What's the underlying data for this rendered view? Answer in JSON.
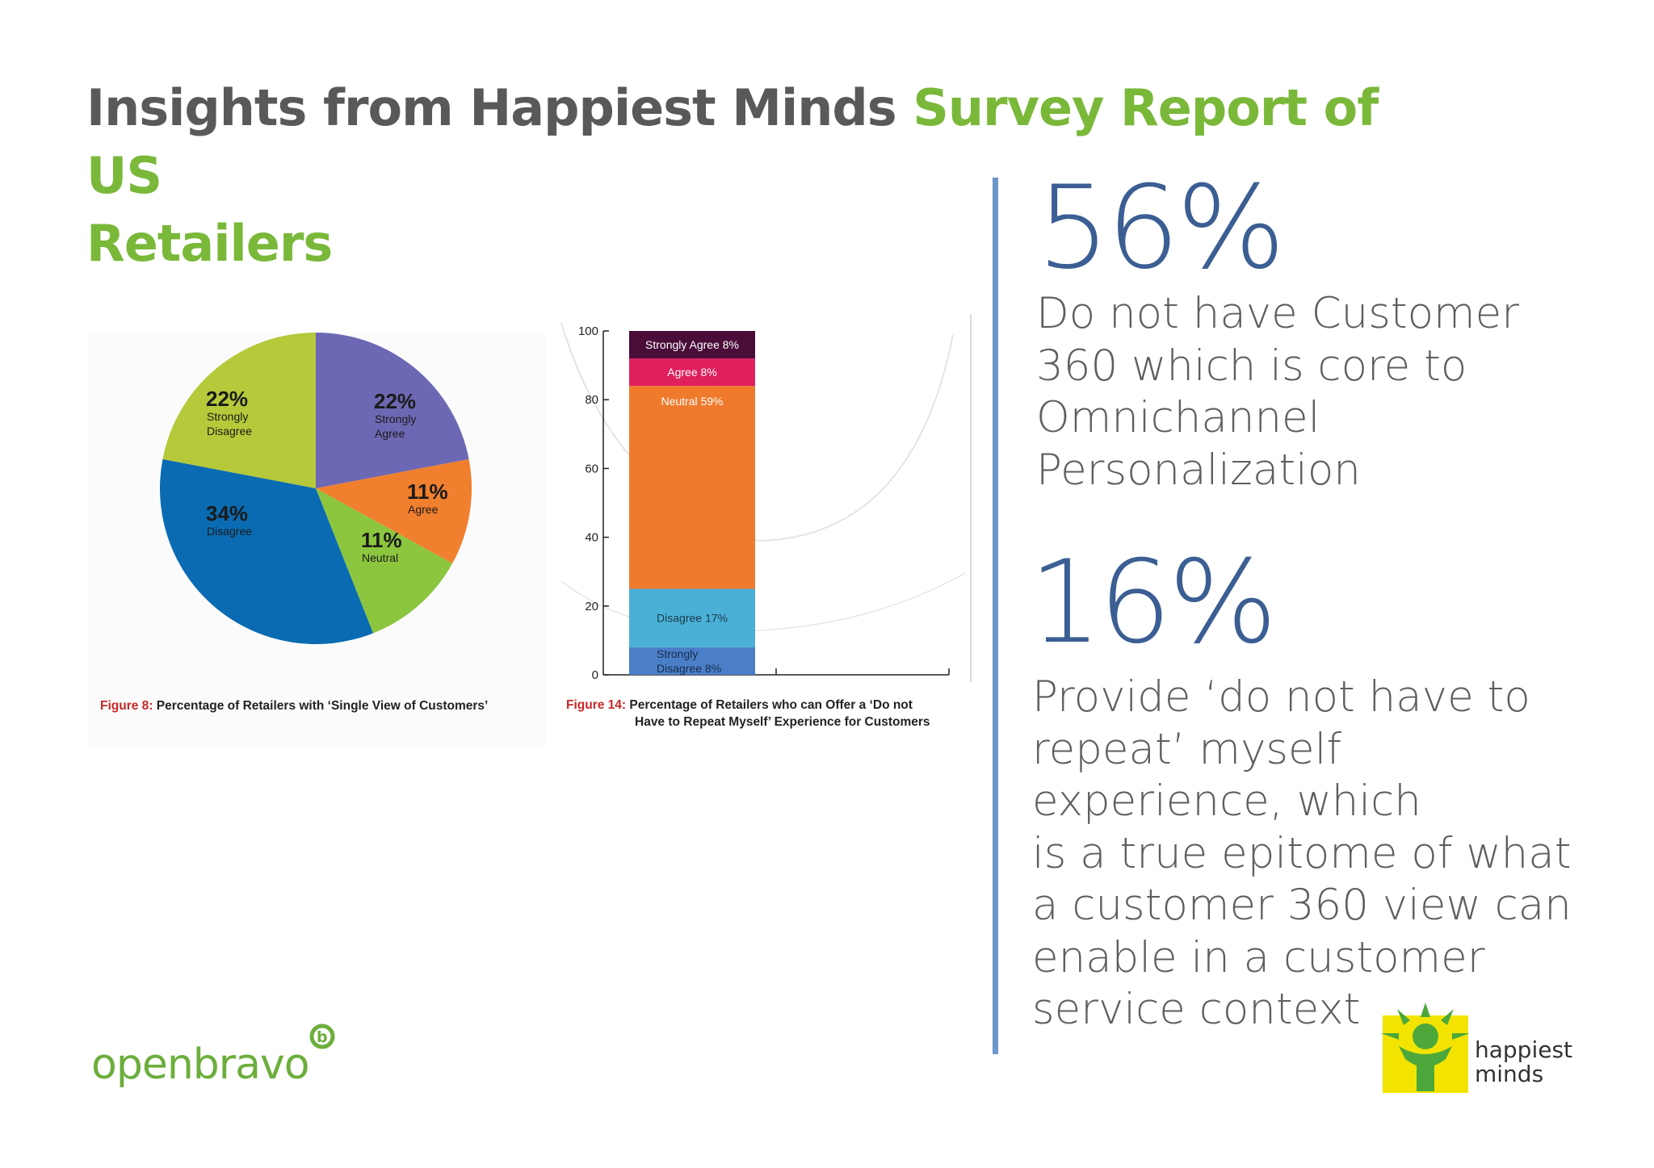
{
  "title": {
    "part1": "Insights from Happiest Minds ",
    "part2": "Survey Report of US",
    "part3": "Retailers"
  },
  "stats": [
    {
      "value": "56%",
      "lines": [
        "Do not have Customer",
        "360 which is core to",
        "Omnichannel",
        "Personalization"
      ]
    },
    {
      "value": "16%",
      "lines": [
        "Provide ‘do not have to",
        "repeat’ myself",
        "experience, which",
        "is a true epitome of what",
        "a customer 360 view can",
        "enable in a customer",
        "service context"
      ]
    }
  ],
  "logos": {
    "openbravo": "openbravo",
    "happiest_minds_line1": "happiest",
    "happiest_minds_line2": "minds"
  },
  "colors": {
    "title_grey": "#595959",
    "title_green": "#7ab83a",
    "stat_blue": "#3b5e93",
    "divider": "#6b97c9"
  },
  "chart_data": [
    {
      "type": "pie",
      "caption_prefix": "Figure 8:",
      "caption": "Percentage of Retailers with ‘Single View of Customers’",
      "slices": [
        {
          "label": "Strongly Agree",
          "value": 22,
          "display": "22%",
          "color": "#6c68b3"
        },
        {
          "label": "Agree",
          "value": 11,
          "display": "11%",
          "color": "#f07f2e"
        },
        {
          "label": "Neutral",
          "value": 11,
          "display": "11%",
          "color": "#8cc63f"
        },
        {
          "label": "Disagree",
          "value": 34,
          "display": "34%",
          "color": "#0a6bb2"
        },
        {
          "label": "Strongly Disagree",
          "value": 22,
          "display": "22%",
          "color": "#b5c93a"
        }
      ]
    },
    {
      "type": "bar",
      "stacked": true,
      "caption_prefix": "Figure 14:",
      "caption_line1": "Percentage of Retailers who can Offer a ‘Do not",
      "caption_line2": "Have to Repeat Myself’ Experience for Customers",
      "ylim": [
        0,
        100
      ],
      "yticks": [
        "0",
        "20",
        "40",
        "60",
        "80",
        "100"
      ],
      "segments": [
        {
          "label": "Strongly Disagree 8%",
          "value": 8,
          "color": "#4a7fc8",
          "text_color": "#1b2b4a"
        },
        {
          "label": "Disagree 17%",
          "value": 17,
          "color": "#4ab0d6",
          "text_color": "#1b3b4a"
        },
        {
          "label": "Neutral 59%",
          "value": 59,
          "color": "#f07a2c",
          "text_color": "#ffffff"
        },
        {
          "label": "Agree 8%",
          "value": 8,
          "color": "#e01f5d",
          "text_color": "#ffffff"
        },
        {
          "label": "Strongly Agree 8%",
          "value": 8,
          "color": "#4a0d3a",
          "text_color": "#ffffff"
        }
      ]
    }
  ]
}
